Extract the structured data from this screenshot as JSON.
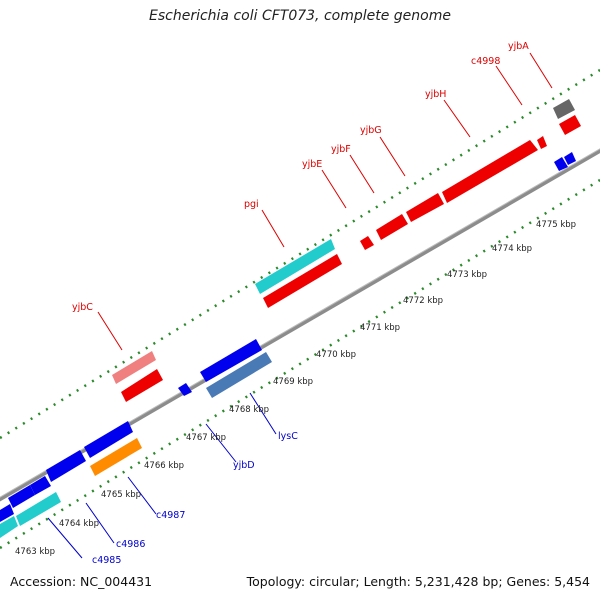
{
  "title": "Escherichia coli CFT073, complete genome",
  "footer": {
    "accession": "Accession: NC_004431",
    "topology": "Topology: circular; Length: 5,231,428 bp; Genes: 5,454"
  },
  "colors": {
    "backbone": "#8c8c8c",
    "tick": "#2a8a2a",
    "label_top": "#dd0000",
    "label_bottom": "#0000cc",
    "red": "#ee0000",
    "pink": "#f08080",
    "cyan": "#22cccc",
    "blue": "#0000ee",
    "steel": "#4a7ab5",
    "orange": "#ff8c00",
    "gray": "#666666"
  },
  "kbp_labels": [
    "4763 kbp",
    "4764 kbp",
    "4765 kbp",
    "4766 kbp",
    "4767 kbp",
    "4768 kbp",
    "4769 kbp",
    "4770 kbp",
    "4771 kbp",
    "4772 kbp",
    "4773 kbp",
    "4774 kbp",
    "4775 kbp"
  ],
  "top_gene_labels": [
    {
      "name": "yjbC",
      "label": "yjbC"
    },
    {
      "name": "pgi",
      "label": "pgi"
    },
    {
      "name": "yjbE",
      "label": "yjbE"
    },
    {
      "name": "yjbF",
      "label": "yjbF"
    },
    {
      "name": "yjbG",
      "label": "yjbG"
    },
    {
      "name": "yjbH",
      "label": "yjbH"
    },
    {
      "name": "c4998",
      "label": "c4998"
    },
    {
      "name": "yjbA",
      "label": "yjbA"
    }
  ],
  "bottom_gene_labels": [
    {
      "name": "c4985",
      "label": "c4985"
    },
    {
      "name": "c4986",
      "label": "c4986"
    },
    {
      "name": "c4987",
      "label": "c4987"
    },
    {
      "name": "yjbD",
      "label": "yjbD"
    },
    {
      "name": "lysC",
      "label": "lysC"
    }
  ]
}
